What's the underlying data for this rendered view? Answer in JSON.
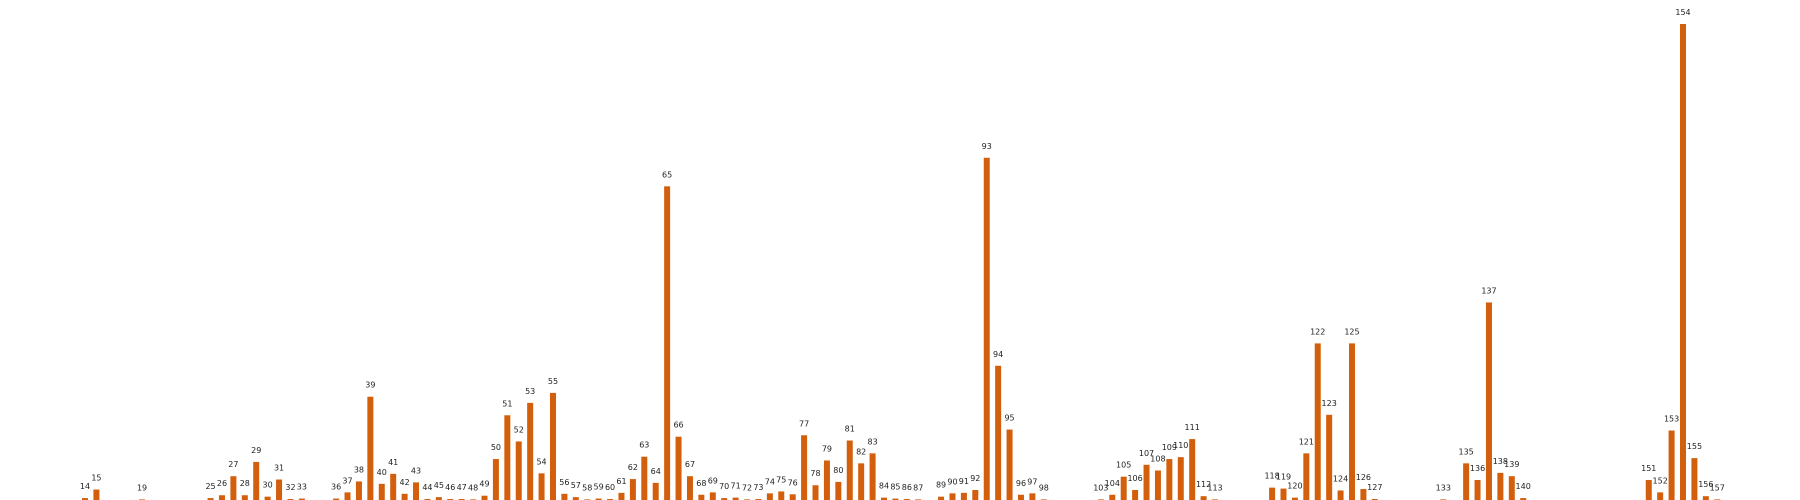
{
  "chart_data": {
    "type": "bar",
    "title": "",
    "xlabel": "",
    "ylabel": "",
    "grid": false,
    "legend": "none",
    "color": "#d35f0c",
    "ylim": [
      0,
      100
    ],
    "bars": [
      {
        "label": "14",
        "value": 0.4
      },
      {
        "label": "15",
        "value": 2.2
      },
      {
        "label": "19",
        "value": 0.1
      },
      {
        "label": "25",
        "value": 0.4
      },
      {
        "label": "26",
        "value": 1.0
      },
      {
        "label": "27",
        "value": 5.0
      },
      {
        "label": "28",
        "value": 1.0
      },
      {
        "label": "29",
        "value": 8.0
      },
      {
        "label": "30",
        "value": 0.7
      },
      {
        "label": "31",
        "value": 4.3
      },
      {
        "label": "32",
        "value": 0.2
      },
      {
        "label": "33",
        "value": 0.3
      },
      {
        "label": "36",
        "value": 0.3
      },
      {
        "label": "37",
        "value": 1.6
      },
      {
        "label": "38",
        "value": 3.9
      },
      {
        "label": "39",
        "value": 21.7
      },
      {
        "label": "40",
        "value": 3.4
      },
      {
        "label": "41",
        "value": 5.5
      },
      {
        "label": "42",
        "value": 1.3
      },
      {
        "label": "43",
        "value": 3.7
      },
      {
        "label": "44",
        "value": 0.2
      },
      {
        "label": "45",
        "value": 0.6
      },
      {
        "label": "46",
        "value": 0.2
      },
      {
        "label": "47",
        "value": 0.2
      },
      {
        "label": "48",
        "value": 0.1
      },
      {
        "label": "49",
        "value": 0.9
      },
      {
        "label": "50",
        "value": 8.6
      },
      {
        "label": "51",
        "value": 17.8
      },
      {
        "label": "52",
        "value": 12.3
      },
      {
        "label": "53",
        "value": 20.4
      },
      {
        "label": "54",
        "value": 5.6
      },
      {
        "label": "55",
        "value": 22.5
      },
      {
        "label": "56",
        "value": 1.3
      },
      {
        "label": "57",
        "value": 0.6
      },
      {
        "label": "58",
        "value": 0.1
      },
      {
        "label": "59",
        "value": 0.3
      },
      {
        "label": "60",
        "value": 0.2
      },
      {
        "label": "61",
        "value": 1.5
      },
      {
        "label": "62",
        "value": 4.4
      },
      {
        "label": "63",
        "value": 9.1
      },
      {
        "label": "64",
        "value": 3.6
      },
      {
        "label": "65",
        "value": 65.9
      },
      {
        "label": "66",
        "value": 13.3
      },
      {
        "label": "67",
        "value": 5.0
      },
      {
        "label": "68",
        "value": 1.1
      },
      {
        "label": "69",
        "value": 1.6
      },
      {
        "label": "70",
        "value": 0.4
      },
      {
        "label": "71",
        "value": 0.5
      },
      {
        "label": "72",
        "value": 0.1
      },
      {
        "label": "73",
        "value": 0.2
      },
      {
        "label": "74",
        "value": 1.4
      },
      {
        "label": "75",
        "value": 1.8
      },
      {
        "label": "76",
        "value": 1.2
      },
      {
        "label": "77",
        "value": 13.6
      },
      {
        "label": "78",
        "value": 3.1
      },
      {
        "label": "79",
        "value": 8.3
      },
      {
        "label": "80",
        "value": 3.8
      },
      {
        "label": "81",
        "value": 12.5
      },
      {
        "label": "82",
        "value": 7.7
      },
      {
        "label": "83",
        "value": 9.8
      },
      {
        "label": "84",
        "value": 0.5
      },
      {
        "label": "85",
        "value": 0.3
      },
      {
        "label": "86",
        "value": 0.2
      },
      {
        "label": "87",
        "value": 0.1
      },
      {
        "label": "89",
        "value": 0.7
      },
      {
        "label": "90",
        "value": 1.4
      },
      {
        "label": "91",
        "value": 1.5
      },
      {
        "label": "92",
        "value": 2.1
      },
      {
        "label": "93",
        "value": 71.9
      },
      {
        "label": "94",
        "value": 28.2
      },
      {
        "label": "95",
        "value": 14.8
      },
      {
        "label": "96",
        "value": 1.1
      },
      {
        "label": "97",
        "value": 1.4
      },
      {
        "label": "98",
        "value": 0.1
      },
      {
        "label": "103",
        "value": 0.1
      },
      {
        "label": "104",
        "value": 1.1
      },
      {
        "label": "105",
        "value": 4.9
      },
      {
        "label": "106",
        "value": 2.1
      },
      {
        "label": "107",
        "value": 7.4
      },
      {
        "label": "108",
        "value": 6.2
      },
      {
        "label": "109",
        "value": 8.6
      },
      {
        "label": "110",
        "value": 9.0
      },
      {
        "label": "111",
        "value": 12.8
      },
      {
        "label": "112",
        "value": 0.8
      },
      {
        "label": "113",
        "value": 0.1
      },
      {
        "label": "118",
        "value": 2.6
      },
      {
        "label": "119",
        "value": 2.4
      },
      {
        "label": "120",
        "value": 0.5
      },
      {
        "label": "121",
        "value": 9.8
      },
      {
        "label": "122",
        "value": 32.9
      },
      {
        "label": "123",
        "value": 17.9
      },
      {
        "label": "124",
        "value": 2.0
      },
      {
        "label": "125",
        "value": 32.9
      },
      {
        "label": "126",
        "value": 2.3
      },
      {
        "label": "127",
        "value": 0.2
      },
      {
        "label": "133",
        "value": 0.1
      },
      {
        "label": "135",
        "value": 7.7
      },
      {
        "label": "136",
        "value": 4.2
      },
      {
        "label": "137",
        "value": 41.5
      },
      {
        "label": "138",
        "value": 5.7
      },
      {
        "label": "139",
        "value": 5.0
      },
      {
        "label": "140",
        "value": 0.4
      },
      {
        "label": "151",
        "value": 4.2
      },
      {
        "label": "152",
        "value": 1.6
      },
      {
        "label": "153",
        "value": 14.6
      },
      {
        "label": "154",
        "value": 100.0
      },
      {
        "label": "155",
        "value": 8.8
      },
      {
        "label": "156",
        "value": 0.8
      },
      {
        "label": "157",
        "value": 0.1
      }
    ]
  }
}
